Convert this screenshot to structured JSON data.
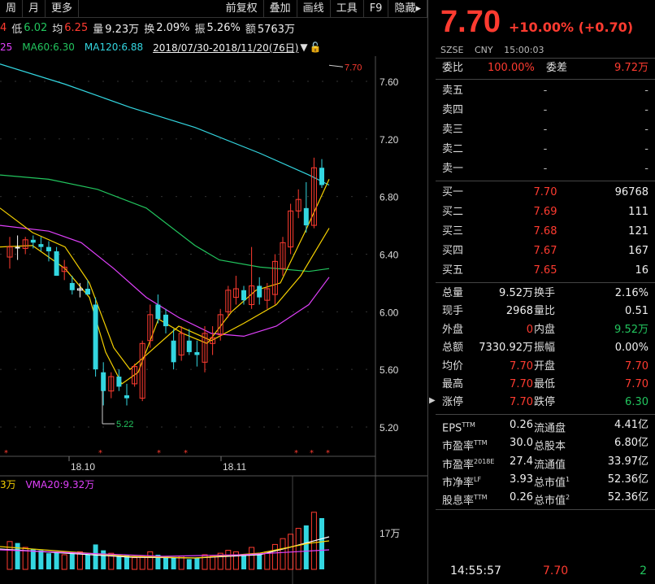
{
  "toolbar": {
    "items": [
      "周",
      "月",
      "更多"
    ],
    "right_items": [
      "前复权",
      "叠加",
      "画线",
      "工具",
      "F9",
      "隐藏"
    ]
  },
  "quotebar": {
    "first": "4",
    "low_label": "低",
    "low": "6.02",
    "avg_label": "均",
    "avg": "6.25",
    "vol_label": "量",
    "vol": "9.23万",
    "turn_label": "换",
    "turn": "2.09%",
    "amp_label": "振",
    "amp": "5.26%",
    "amt_label": "额",
    "amt": "5763万"
  },
  "mabar": {
    "ma_prev": "25",
    "ma60": "MA60:6.30",
    "ma120": "MA120:6.88",
    "range": "2018/07/30-2018/11/20(76日)"
  },
  "price_axis": [
    "7.60",
    "7.20",
    "6.80",
    "6.40",
    "6.00",
    "5.60",
    "5.20"
  ],
  "annotations": {
    "high": "7.70",
    "low": "5.22"
  },
  "date_labels": [
    "18.10",
    "18.11"
  ],
  "vol_header": {
    "prev": "3万",
    "vma20": "VMA20:9.32万"
  },
  "vol_axis": "17万",
  "colors": {
    "up": "#ff3b30",
    "down": "#22c55e",
    "ma5": "#f0f0f0",
    "ma10": "#f5d000",
    "ma20": "#e040fb",
    "ma60": "#22c55e",
    "ma120": "#33d6e0"
  },
  "quote": {
    "price": "7.70",
    "change": "+10.00% (+0.70)",
    "exchange": "SZSE",
    "currency": "CNY",
    "time": "15:00:03",
    "weibi_label": "委比",
    "weibi": "100.00%",
    "weicha_label": "委差",
    "weicha": "9.72万"
  },
  "sell": [
    {
      "label": "卖五",
      "price": "-",
      "vol": "-"
    },
    {
      "label": "卖四",
      "price": "-",
      "vol": "-"
    },
    {
      "label": "卖三",
      "price": "-",
      "vol": "-"
    },
    {
      "label": "卖二",
      "price": "-",
      "vol": "-"
    },
    {
      "label": "卖一",
      "price": "-",
      "vol": "-"
    }
  ],
  "buy": [
    {
      "label": "买一",
      "price": "7.70",
      "vol": "96768"
    },
    {
      "label": "买二",
      "price": "7.69",
      "vol": "111"
    },
    {
      "label": "买三",
      "price": "7.68",
      "vol": "121"
    },
    {
      "label": "买四",
      "price": "7.67",
      "vol": "167"
    },
    {
      "label": "买五",
      "price": "7.65",
      "vol": "16"
    }
  ],
  "stats": [
    {
      "l1": "总量",
      "v1": "9.52万",
      "l2": "换手",
      "v2": "2.16%",
      "c1": "white",
      "c2": "white"
    },
    {
      "l1": "现手",
      "v1": "2968",
      "l2": "量比",
      "v2": "0.51",
      "c1": "white",
      "c2": "white"
    },
    {
      "l1": "外盘",
      "v1": "0",
      "l2": "内盘",
      "v2": "9.52万",
      "c1": "red",
      "c2": "green"
    },
    {
      "l1": "总额",
      "v1": "7330.92万",
      "l2": "振幅",
      "v2": "0.00%",
      "c1": "white",
      "c2": "white"
    },
    {
      "l1": "均价",
      "v1": "7.70",
      "l2": "开盘",
      "v2": "7.70",
      "c1": "red",
      "c2": "red"
    },
    {
      "l1": "最高",
      "v1": "7.70",
      "l2": "最低",
      "v2": "7.70",
      "c1": "red",
      "c2": "red"
    },
    {
      "l1": "涨停",
      "v1": "7.70",
      "l2": "跌停",
      "v2": "6.30",
      "c1": "red",
      "c2": "green"
    }
  ],
  "fundamentals": [
    {
      "l1": "EPS",
      "s1": "TTM",
      "v1": "0.26",
      "l2": "流通盘",
      "s2": "",
      "v2": "4.41亿"
    },
    {
      "l1": "市盈率",
      "s1": "TTM",
      "v1": "30.0",
      "l2": "总股本",
      "s2": "",
      "v2": "6.80亿"
    },
    {
      "l1": "市盈率",
      "s1": "2018E",
      "v1": "27.4",
      "l2": "流通值",
      "s2": "",
      "v2": "33.97亿"
    },
    {
      "l1": "市净率",
      "s1": "LF",
      "v1": "3.93",
      "l2": "总市值",
      "s2": "1",
      "v2": "52.36亿"
    },
    {
      "l1": "股息率",
      "s1": "TTM",
      "v1": "0.26",
      "l2": "总市值",
      "s2": "2",
      "v2": "52.36亿"
    }
  ],
  "last_tick": {
    "time": "14:55:57",
    "price": "7.70",
    "vol": "2"
  }
}
